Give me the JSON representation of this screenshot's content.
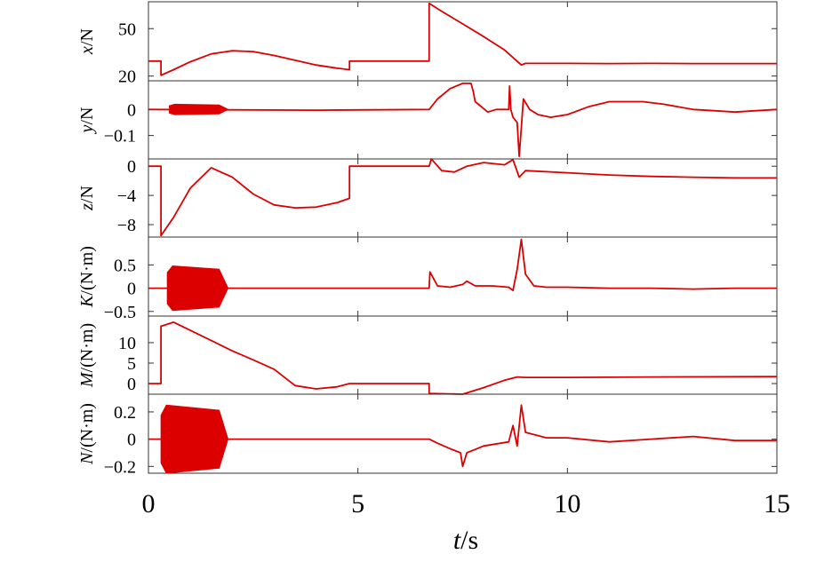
{
  "chart_data": {
    "type": "line",
    "xlabel": "t/s",
    "xlabel_var": "t",
    "xlabel_unit": "/s",
    "xlim": [
      0,
      15
    ],
    "xticks": [
      0,
      5,
      10,
      15
    ],
    "xtick_labels": [
      "0",
      "5",
      "10",
      "15"
    ],
    "series_color": "#dd0000",
    "grid": false,
    "panels": [
      {
        "name": "x",
        "ylabel_var": "x",
        "ylabel_unit": "/N",
        "ylim": [
          17,
          67
        ],
        "yticks": [
          20,
          50
        ],
        "ytick_labels": [
          "20",
          "50"
        ],
        "points": [
          [
            0,
            29.5
          ],
          [
            0.3,
            29.5
          ],
          [
            0.3,
            20.5
          ],
          [
            0.6,
            24
          ],
          [
            1.0,
            29
          ],
          [
            1.5,
            34
          ],
          [
            2.0,
            36
          ],
          [
            2.5,
            35.5
          ],
          [
            3.0,
            33
          ],
          [
            3.5,
            30
          ],
          [
            4.0,
            27
          ],
          [
            4.5,
            25
          ],
          [
            4.8,
            24
          ],
          [
            4.8,
            29.5
          ],
          [
            6.7,
            29.5
          ],
          [
            6.7,
            66
          ],
          [
            7.0,
            61
          ],
          [
            7.5,
            53
          ],
          [
            8.0,
            45
          ],
          [
            8.5,
            36.5
          ],
          [
            8.9,
            27
          ],
          [
            9.0,
            28
          ],
          [
            10,
            28
          ],
          [
            11,
            27.9
          ],
          [
            12,
            28
          ],
          [
            13,
            27.9
          ],
          [
            14,
            27.9
          ],
          [
            15,
            27.9
          ]
        ]
      },
      {
        "name": "y",
        "ylabel_var": "y",
        "ylabel_unit": "/N",
        "ylim": [
          -0.19,
          0.11
        ],
        "yticks": [
          -0.1,
          0
        ],
        "ytick_labels": [
          "−0.1",
          "0"
        ],
        "band": {
          "x": [
            0.5,
            1.9
          ],
          "half_width": 0.02
        },
        "points": [
          [
            0,
            0
          ],
          [
            4,
            -0.003
          ],
          [
            6.7,
            0
          ],
          [
            6.9,
            0.04
          ],
          [
            7.2,
            0.08
          ],
          [
            7.5,
            0.1
          ],
          [
            7.7,
            0.1
          ],
          [
            7.75,
            0.07
          ],
          [
            7.8,
            0.03
          ],
          [
            8.1,
            -0.01
          ],
          [
            8.3,
            0
          ],
          [
            8.6,
            0
          ],
          [
            8.62,
            0.09
          ],
          [
            8.65,
            0
          ],
          [
            8.7,
            -0.03
          ],
          [
            8.8,
            -0.05
          ],
          [
            8.85,
            -0.18
          ],
          [
            8.9,
            -0.07
          ],
          [
            8.95,
            0.04
          ],
          [
            9.1,
            0
          ],
          [
            9.3,
            -0.02
          ],
          [
            9.6,
            -0.03
          ],
          [
            10,
            -0.02
          ],
          [
            10.5,
            0.01
          ],
          [
            11.0,
            0.03
          ],
          [
            11.3,
            0.03
          ],
          [
            11.8,
            0.03
          ],
          [
            12.3,
            0.02
          ],
          [
            13.0,
            0
          ],
          [
            13.5,
            -0.005
          ],
          [
            14,
            -0.01
          ],
          [
            14.5,
            -0.005
          ],
          [
            15,
            0
          ]
        ]
      },
      {
        "name": "z",
        "ylabel_var": "z",
        "ylabel_unit": "/N",
        "ylim": [
          -9.7,
          1.0
        ],
        "yticks": [
          -8,
          -4,
          0
        ],
        "ytick_labels": [
          "−8",
          "−4",
          "0"
        ],
        "points": [
          [
            0,
            0
          ],
          [
            0.3,
            0
          ],
          [
            0.3,
            -9.5
          ],
          [
            0.6,
            -7
          ],
          [
            1.0,
            -3
          ],
          [
            1.5,
            -0.2
          ],
          [
            2.0,
            -1.5
          ],
          [
            2.5,
            -3.8
          ],
          [
            3.0,
            -5.3
          ],
          [
            3.5,
            -5.7
          ],
          [
            4.0,
            -5.6
          ],
          [
            4.5,
            -5
          ],
          [
            4.8,
            -4.4
          ],
          [
            4.8,
            0
          ],
          [
            6.7,
            0
          ],
          [
            6.75,
            1
          ],
          [
            7.0,
            -0.6
          ],
          [
            7.3,
            -0.8
          ],
          [
            7.6,
            0
          ],
          [
            8.0,
            0.5
          ],
          [
            8.5,
            0.2
          ],
          [
            8.7,
            0.9
          ],
          [
            8.85,
            -1.5
          ],
          [
            9.0,
            -0.6
          ],
          [
            10,
            -0.9
          ],
          [
            11,
            -1.2
          ],
          [
            12,
            -1.4
          ],
          [
            13,
            -1.5
          ],
          [
            14,
            -1.6
          ],
          [
            15,
            -1.6
          ]
        ]
      },
      {
        "name": "K",
        "ylabel_var": "K",
        "ylabel_unit": "/(N·m)",
        "ylim": [
          -0.6,
          1.1
        ],
        "yticks": [
          -0.5,
          0,
          0.5
        ],
        "ytick_labels": [
          "−0.5",
          "0",
          "0.5"
        ],
        "band": {
          "x": [
            0.45,
            1.9
          ],
          "half_width": 0.48
        },
        "points": [
          [
            0,
            0
          ],
          [
            6.7,
            0
          ],
          [
            6.72,
            0.35
          ],
          [
            6.9,
            0.05
          ],
          [
            7.2,
            0.02
          ],
          [
            7.5,
            0.08
          ],
          [
            7.6,
            0.15
          ],
          [
            7.8,
            0.05
          ],
          [
            8.2,
            0.05
          ],
          [
            8.6,
            0.02
          ],
          [
            8.7,
            -0.05
          ],
          [
            8.8,
            0.4
          ],
          [
            8.9,
            1.05
          ],
          [
            9.0,
            0.3
          ],
          [
            9.2,
            0.05
          ],
          [
            9.5,
            0.02
          ],
          [
            10,
            0.02
          ],
          [
            11,
            0
          ],
          [
            12,
            0
          ],
          [
            13,
            -0.02
          ],
          [
            14,
            0
          ],
          [
            15,
            0
          ]
        ]
      },
      {
        "name": "M",
        "ylabel_var": "M",
        "ylabel_unit": "/(N·m)",
        "ylim": [
          -2.6,
          16.5
        ],
        "yticks": [
          0,
          5,
          10
        ],
        "ytick_labels": [
          "0",
          "5",
          "10"
        ],
        "points": [
          [
            0,
            0
          ],
          [
            0.3,
            0
          ],
          [
            0.3,
            14
          ],
          [
            0.6,
            15
          ],
          [
            1.0,
            13
          ],
          [
            1.5,
            10.5
          ],
          [
            2.0,
            8
          ],
          [
            2.5,
            5.8
          ],
          [
            3.0,
            3.5
          ],
          [
            3.5,
            -0.5
          ],
          [
            4.0,
            -1.3
          ],
          [
            4.5,
            -0.8
          ],
          [
            4.8,
            0
          ],
          [
            6.7,
            0
          ],
          [
            6.7,
            -2.4
          ],
          [
            7.5,
            -2.6
          ],
          [
            8.0,
            -1
          ],
          [
            8.5,
            0.8
          ],
          [
            8.8,
            1.6
          ],
          [
            9.0,
            1.5
          ],
          [
            10,
            1.5
          ],
          [
            12,
            1.6
          ],
          [
            15,
            1.7
          ]
        ]
      },
      {
        "name": "N",
        "ylabel_var": "N",
        "ylabel_unit": "/(N·m)",
        "ylim": [
          -0.25,
          0.33
        ],
        "yticks": [
          -0.2,
          0,
          0.2
        ],
        "ytick_labels": [
          "−0.2",
          "0",
          "0.2"
        ],
        "band": {
          "x": [
            0.3,
            1.9
          ],
          "half_width": 0.25
        },
        "points": [
          [
            0,
            0
          ],
          [
            6.7,
            0
          ],
          [
            6.9,
            -0.03
          ],
          [
            7.2,
            -0.07
          ],
          [
            7.45,
            -0.1
          ],
          [
            7.5,
            -0.2
          ],
          [
            7.6,
            -0.1
          ],
          [
            8.0,
            -0.05
          ],
          [
            8.6,
            -0.02
          ],
          [
            8.7,
            0.1
          ],
          [
            8.8,
            -0.05
          ],
          [
            8.9,
            0.25
          ],
          [
            9.0,
            0.05
          ],
          [
            9.5,
            0.01
          ],
          [
            10,
            0.01
          ],
          [
            11,
            -0.02
          ],
          [
            12,
            0
          ],
          [
            13,
            0.02
          ],
          [
            14,
            -0.01
          ],
          [
            15,
            -0.01
          ]
        ]
      }
    ]
  }
}
